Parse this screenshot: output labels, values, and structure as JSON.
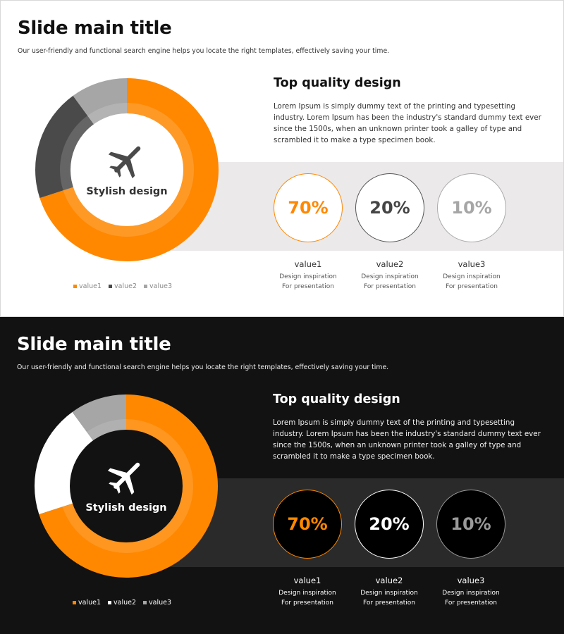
{
  "colors": {
    "accent": "#ff8800",
    "light_value2": "#4a4a4a",
    "value3": "#a6a6a6",
    "dark_value2": "#ffffff",
    "dark_background": "#121212"
  },
  "slides": [
    {
      "theme": "light",
      "title": "Slide main title",
      "subtitle": "Our user-friendly and functional search engine helps you locate the right templates, effectively saving your time.",
      "center_icon": "airplane-icon",
      "center_label": "Stylish design",
      "heading": "Top quality design",
      "body": "Lorem Ipsum is simply dummy text of the printing and typesetting industry. Lorem Ipsum has been the industry's standard dummy text ever since the 1500s, when an unknown printer took a galley of type and scrambled it to make a type specimen book.",
      "stats": [
        {
          "percent": "70%",
          "name": "value1",
          "line1": "Design inspiration",
          "line2": "For presentation"
        },
        {
          "percent": "20%",
          "name": "value2",
          "line1": "Design inspiration",
          "line2": "For presentation"
        },
        {
          "percent": "10%",
          "name": "value3",
          "line1": "Design inspiration",
          "line2": "For presentation"
        }
      ],
      "legend": [
        "value1",
        "value2",
        "value3"
      ]
    },
    {
      "theme": "dark",
      "title": "Slide main title",
      "subtitle": "Our user-friendly and functional search engine helps you locate the right templates, effectively saving your time.",
      "center_icon": "airplane-icon",
      "center_label": "Stylish design",
      "heading": "Top quality design",
      "body": "Lorem Ipsum is simply dummy text of the printing and typesetting industry. Lorem Ipsum has been the industry's standard dummy text ever since the 1500s, when an unknown printer took a galley of type and scrambled it to make a type specimen book.",
      "stats": [
        {
          "percent": "70%",
          "name": "value1",
          "line1": "Design inspiration",
          "line2": "For presentation"
        },
        {
          "percent": "20%",
          "name": "value2",
          "line1": "Design inspiration",
          "line2": "For presentation"
        },
        {
          "percent": "10%",
          "name": "value3",
          "line1": "Design inspiration",
          "line2": "For presentation"
        }
      ],
      "legend": [
        "value1",
        "value2",
        "value3"
      ]
    }
  ],
  "chart_data": [
    {
      "type": "pie",
      "categories": [
        "value1",
        "value2",
        "value3"
      ],
      "values": [
        70,
        20,
        10
      ],
      "colors": [
        "#ff8800",
        "#4a4a4a",
        "#a6a6a6"
      ],
      "title": "",
      "center_label": "Stylish design",
      "legend_position": "bottom"
    },
    {
      "type": "pie",
      "categories": [
        "value1",
        "value2",
        "value3"
      ],
      "values": [
        70,
        20,
        10
      ],
      "colors": [
        "#ff8800",
        "#ffffff",
        "#a6a6a6"
      ],
      "title": "",
      "center_label": "Stylish design",
      "legend_position": "bottom"
    }
  ]
}
